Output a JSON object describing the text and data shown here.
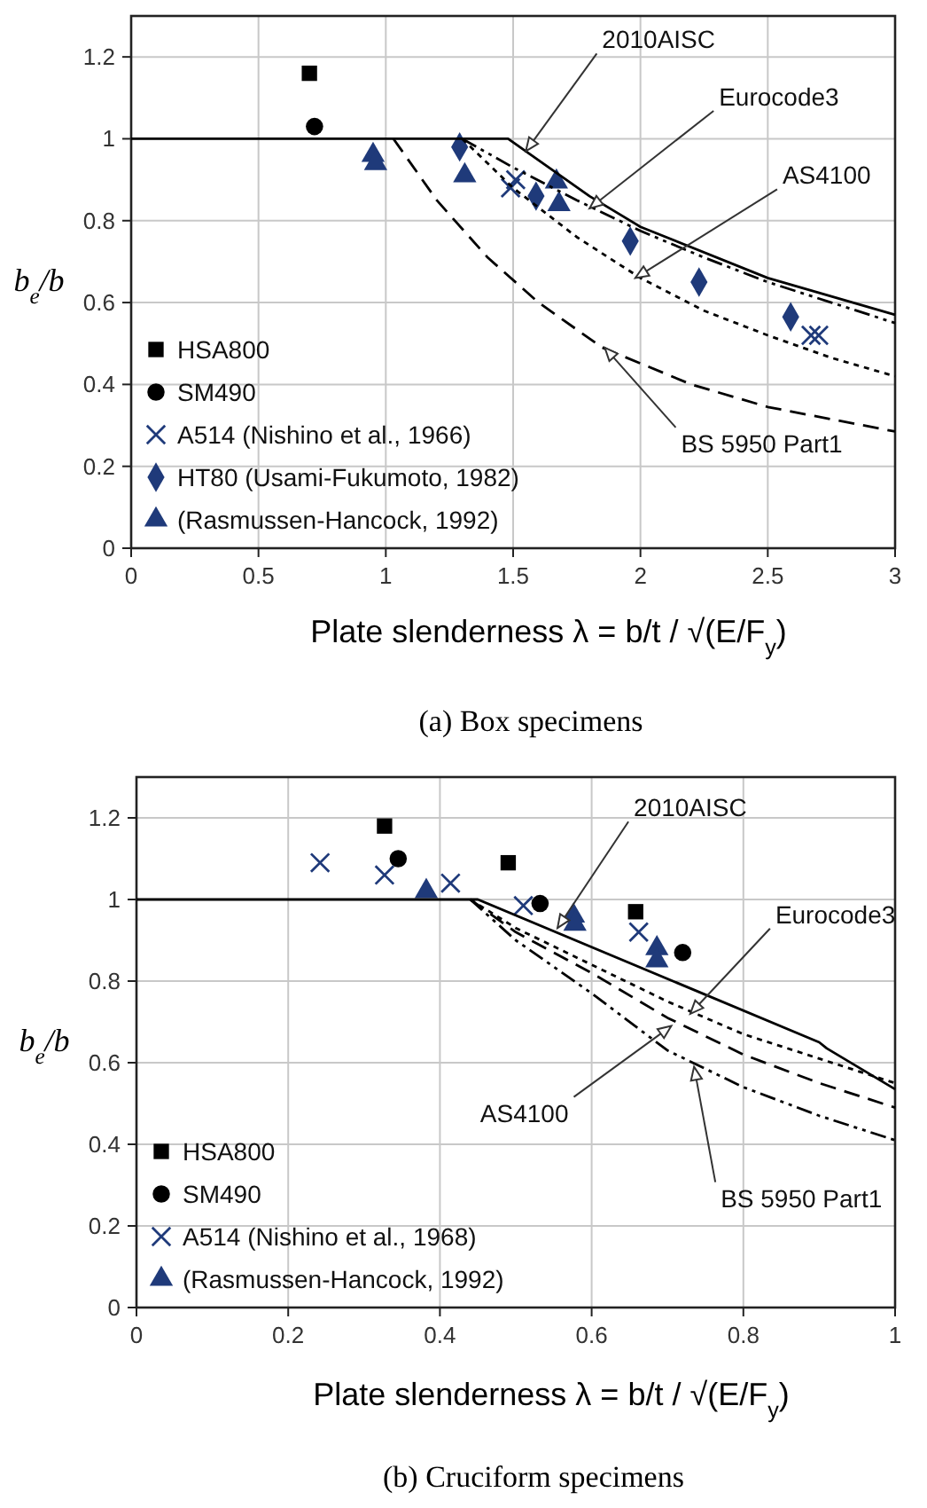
{
  "chart_data": [
    {
      "type": "scatter",
      "title": "(a) Box specimens",
      "xlabel": "Plate slenderness λ = b/t / √(E/F$_{y}$)",
      "ylabel": "b$_{e}$/b",
      "xlim": [
        0,
        3
      ],
      "xticks": [
        0,
        0.5,
        1,
        1.5,
        2,
        2.5,
        3
      ],
      "ylim": [
        0,
        1.3
      ],
      "yticks": [
        0,
        0.2,
        0.4,
        0.6,
        0.8,
        1,
        1.2
      ],
      "grid": true,
      "legend": "bottom left",
      "series": [
        {
          "name": "HSA800",
          "color": "#000000",
          "marker": "square",
          "x": [
            0.7
          ],
          "values": [
            1.16
          ]
        },
        {
          "name": "SM490",
          "color": "#000000",
          "marker": "circle",
          "x": [
            0.72
          ],
          "values": [
            1.03
          ]
        },
        {
          "name": "A514 (Nishino et al., 1966)",
          "color": "#1f3a7a",
          "marker": "cross",
          "x": [
            1.49,
            1.51,
            2.67,
            2.7
          ],
          "values": [
            0.88,
            0.9,
            0.52,
            0.52
          ]
        },
        {
          "name": "HT80 (Usami-Fukumoto, 1982)",
          "color": "#1f3a7a",
          "marker": "diamond",
          "x": [
            1.29,
            1.59,
            1.96,
            2.23,
            2.59
          ],
          "values": [
            0.98,
            0.86,
            0.75,
            0.65,
            0.565
          ]
        },
        {
          "name": "(Rasmussen-Hancock, 1992)",
          "color": "#1f3a7a",
          "marker": "triangle",
          "x": [
            0.95,
            0.96,
            1.31,
            1.67,
            1.68
          ],
          "values": [
            0.96,
            0.94,
            0.91,
            0.895,
            0.84
          ]
        },
        {
          "type": "line",
          "color": "#000000",
          "line_style": "solid",
          "x": [
            0,
            1.48,
            1.8,
            2,
            2.5,
            3
          ],
          "values": [
            1,
            1,
            0.86,
            0.785,
            0.66,
            0.57
          ]
        },
        {
          "type": "line",
          "color": "#000000",
          "line_style": "dashdot",
          "x": [
            1.3,
            1.5,
            1.75,
            2,
            2.25,
            2.5,
            2.75,
            3
          ],
          "values": [
            1,
            0.93,
            0.85,
            0.775,
            0.71,
            0.65,
            0.6,
            0.55
          ]
        },
        {
          "type": "line",
          "color": "#000000",
          "line_style": "dotted",
          "x": [
            1.3,
            1.5,
            1.75,
            2,
            2.25,
            2.5,
            2.75,
            3
          ],
          "values": [
            1,
            0.88,
            0.76,
            0.66,
            0.58,
            0.52,
            0.465,
            0.42
          ]
        },
        {
          "type": "line",
          "color": "#000000",
          "line_style": "dashed",
          "x": [
            1.03,
            1.2,
            1.4,
            1.6,
            1.85,
            2.2,
            2.5,
            3
          ],
          "values": [
            1,
            0.85,
            0.71,
            0.6,
            0.49,
            0.4,
            0.345,
            0.285
          ]
        }
      ],
      "annotations": [
        {
          "text": "2010AISC",
          "x": 1.55,
          "y": 0.97
        },
        {
          "text": "Eurocode3",
          "x": 1.8,
          "y": 0.83
        },
        {
          "text": "AS4100",
          "x": 1.98,
          "y": 0.66
        },
        {
          "text": "BS 5950 Part1",
          "x": 1.86,
          "y": 0.49
        }
      ]
    },
    {
      "type": "scatter",
      "title": "(b) Cruciform specimens",
      "xlabel": "Plate slenderness λ = b/t / √(E/F$_{y}$)",
      "ylabel": "b$_{e}$/b",
      "xlim": [
        0,
        1
      ],
      "xticks": [
        0,
        0.2,
        0.4,
        0.6,
        0.8,
        1
      ],
      "ylim": [
        0,
        1.3
      ],
      "yticks": [
        0,
        0.2,
        0.4,
        0.6,
        0.8,
        1,
        1.2
      ],
      "grid": true,
      "legend": "bottom left",
      "series": [
        {
          "name": "HSA800",
          "color": "#000000",
          "marker": "square",
          "x": [
            0.327,
            0.49,
            0.658
          ],
          "values": [
            1.18,
            1.09,
            0.97
          ]
        },
        {
          "name": "SM490",
          "color": "#000000",
          "marker": "circle",
          "x": [
            0.345,
            0.532,
            0.72
          ],
          "values": [
            1.1,
            0.99,
            0.87
          ]
        },
        {
          "name": "A514 (Nishino et al., 1968)",
          "color": "#1f3a7a",
          "marker": "cross",
          "x": [
            0.242,
            0.327,
            0.414,
            0.51,
            0.662
          ],
          "values": [
            1.09,
            1.06,
            1.04,
            0.985,
            0.92
          ]
        },
        {
          "name": "(Rasmussen-Hancock, 1992)",
          "color": "#1f3a7a",
          "marker": "triangle",
          "x": [
            0.382,
            0.576,
            0.578,
            0.686,
            0.686
          ],
          "values": [
            1.02,
            0.96,
            0.94,
            0.88,
            0.85
          ]
        },
        {
          "type": "line",
          "color": "#000000",
          "line_style": "solid",
          "x": [
            0,
            0.45,
            0.9,
            0.91,
            1
          ],
          "values": [
            1,
            1,
            0.65,
            0.635,
            0.535
          ]
        },
        {
          "type": "line",
          "color": "#000000",
          "line_style": "dotted",
          "x": [
            0.44,
            0.5,
            0.6,
            0.7,
            0.8,
            0.9,
            1
          ],
          "values": [
            1,
            0.93,
            0.84,
            0.75,
            0.67,
            0.61,
            0.55
          ]
        },
        {
          "type": "line",
          "color": "#000000",
          "line_style": "dashed",
          "x": [
            0.44,
            0.5,
            0.6,
            0.7,
            0.8,
            0.9,
            1
          ],
          "values": [
            1,
            0.92,
            0.82,
            0.71,
            0.62,
            0.55,
            0.49
          ]
        },
        {
          "type": "line",
          "color": "#000000",
          "line_style": "dashdot",
          "x": [
            0.44,
            0.5,
            0.6,
            0.7,
            0.8,
            0.9,
            1
          ],
          "values": [
            1,
            0.9,
            0.77,
            0.63,
            0.54,
            0.47,
            0.41
          ]
        }
      ],
      "annotations": [
        {
          "text": "2010AISC",
          "x": 0.555,
          "y": 0.93
        },
        {
          "text": "Eurocode3",
          "x": 0.73,
          "y": 0.72
        },
        {
          "text": "AS4100",
          "x": 0.705,
          "y": 0.69
        },
        {
          "text": "BS 5950 Part1",
          "x": 0.735,
          "y": 0.59
        }
      ]
    }
  ]
}
